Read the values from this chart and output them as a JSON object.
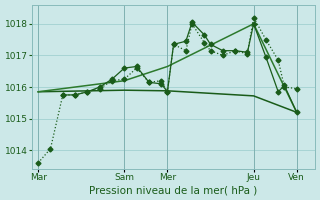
{
  "bg_color": "#cce8e8",
  "grid_color": "#99cccc",
  "line_dark": "#1a5c1a",
  "line_mid": "#2d8a2d",
  "xlabel_text": "Pression niveau de la mer( hPa )",
  "xtick_labels": [
    "Mar",
    "Sam",
    "Mer",
    "Jeu",
    "Ven"
  ],
  "xtick_positions": [
    0,
    28,
    42,
    70,
    84
  ],
  "xlim": [
    -2,
    90
  ],
  "ylim": [
    1013.4,
    1018.6
  ],
  "yticks": [
    1014,
    1015,
    1016,
    1017,
    1018
  ],
  "series": [
    {
      "x": [
        0,
        4,
        8,
        12,
        16,
        20,
        24,
        28,
        32,
        36,
        40,
        42,
        44,
        48,
        50,
        54,
        56,
        60,
        64,
        68,
        70,
        74,
        78,
        80,
        84
      ],
      "y": [
        1013.6,
        1014.05,
        1015.75,
        1015.75,
        1015.85,
        1015.95,
        1016.2,
        1016.25,
        1016.6,
        1016.15,
        1016.2,
        1015.85,
        1017.35,
        1017.15,
        1018.0,
        1017.4,
        1017.15,
        1017.0,
        1017.15,
        1017.05,
        1018.2,
        1017.5,
        1016.85,
        1016.0,
        1015.95
      ],
      "style": "dotted",
      "marker": "D",
      "markersize": 2.5,
      "linewidth": 0.9,
      "color": "#1a5c1a"
    },
    {
      "x": [
        8,
        12,
        16,
        20,
        24,
        28,
        32,
        36,
        40,
        42,
        44,
        48,
        50,
        54,
        56,
        60,
        64,
        68,
        70,
        74,
        78,
        80,
        84
      ],
      "y": [
        1015.75,
        1015.75,
        1015.85,
        1016.0,
        1016.25,
        1016.6,
        1016.65,
        1016.15,
        1016.1,
        1015.85,
        1017.35,
        1017.45,
        1018.05,
        1017.65,
        1017.35,
        1017.15,
        1017.15,
        1017.1,
        1018.0,
        1016.95,
        1015.85,
        1016.05,
        1015.2
      ],
      "style": "solid",
      "marker": "D",
      "markersize": 2.5,
      "linewidth": 0.9,
      "color": "#1a5c1a"
    },
    {
      "x": [
        0,
        28,
        42,
        70,
        84
      ],
      "y": [
        1015.85,
        1015.9,
        1015.88,
        1015.72,
        1015.2
      ],
      "style": "solid",
      "marker": null,
      "markersize": 0,
      "linewidth": 1.1,
      "color": "#1a5c1a"
    },
    {
      "x": [
        0,
        28,
        42,
        70,
        84
      ],
      "y": [
        1015.85,
        1016.2,
        1016.65,
        1018.0,
        1015.2
      ],
      "style": "solid",
      "marker": null,
      "markersize": 0,
      "linewidth": 1.1,
      "color": "#2d7a2d"
    }
  ],
  "tick_color": "#1a5c1a",
  "tick_fontsize": 6.5,
  "xlabel_fontsize": 7.5,
  "xlabel_color": "#1a5c1a"
}
